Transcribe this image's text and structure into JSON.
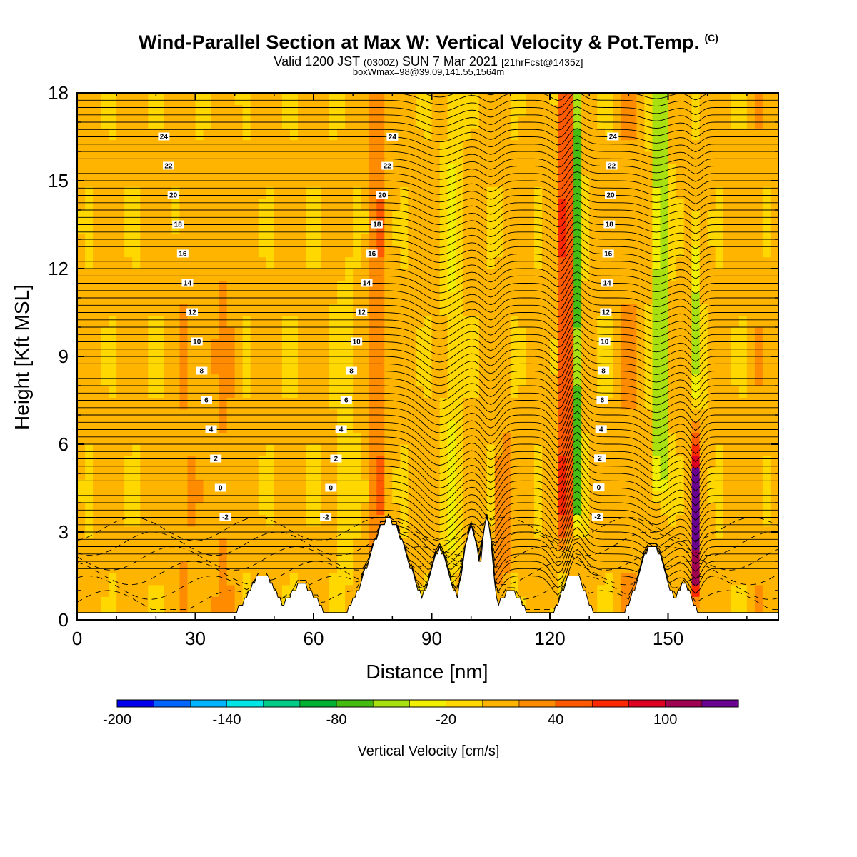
{
  "header": {
    "title": "Wind-Parallel Section at Max W: Vertical Velocity & Pot.Temp.",
    "copyright": "(C)",
    "valid_prefix": "Valid 1200 JST",
    "valid_utc": "(0300Z)",
    "valid_date": "SUN 7 Mar 2021",
    "forecast": "[21hrFcst@1435z]",
    "box_info": "boxWmax=98@39.09,141.55,1564m"
  },
  "chart_data": {
    "type": "heatmap",
    "xlabel": "Distance [nm]",
    "ylabel": "Height [Kft MSL]",
    "xlim": [
      0,
      178
    ],
    "ylim": [
      0,
      18
    ],
    "x_ticks": [
      "0",
      "30",
      "60",
      "90",
      "120",
      "150"
    ],
    "y_ticks": [
      "0",
      "3",
      "6",
      "9",
      "12",
      "15",
      "18"
    ],
    "contour_labels": [
      "24",
      "22",
      "20",
      "18",
      "16",
      "14",
      "12",
      "10",
      "8",
      "6",
      "4",
      "2",
      "0",
      "-2"
    ],
    "colorbar": {
      "label": "Vertical Velocity [cm/s]",
      "tick_labels": [
        "-200",
        "-140",
        "-80",
        "-20",
        "40",
        "100"
      ],
      "colors": [
        "#0000ee",
        "#0064ff",
        "#00b4ff",
        "#00e6e6",
        "#00cc88",
        "#00b030",
        "#44bb10",
        "#a8e010",
        "#f0f000",
        "#ffd800",
        "#ffb400",
        "#ff8c00",
        "#ff5a00",
        "#ff2800",
        "#dd0020",
        "#a00050",
        "#6a0090"
      ]
    },
    "terrain_peaks_nm": [
      47,
      79,
      100,
      104,
      126,
      146
    ],
    "updraft_maxima_nm": [
      76,
      123,
      157
    ],
    "downdraft_maxima_nm": [
      126,
      148,
      157
    ]
  }
}
